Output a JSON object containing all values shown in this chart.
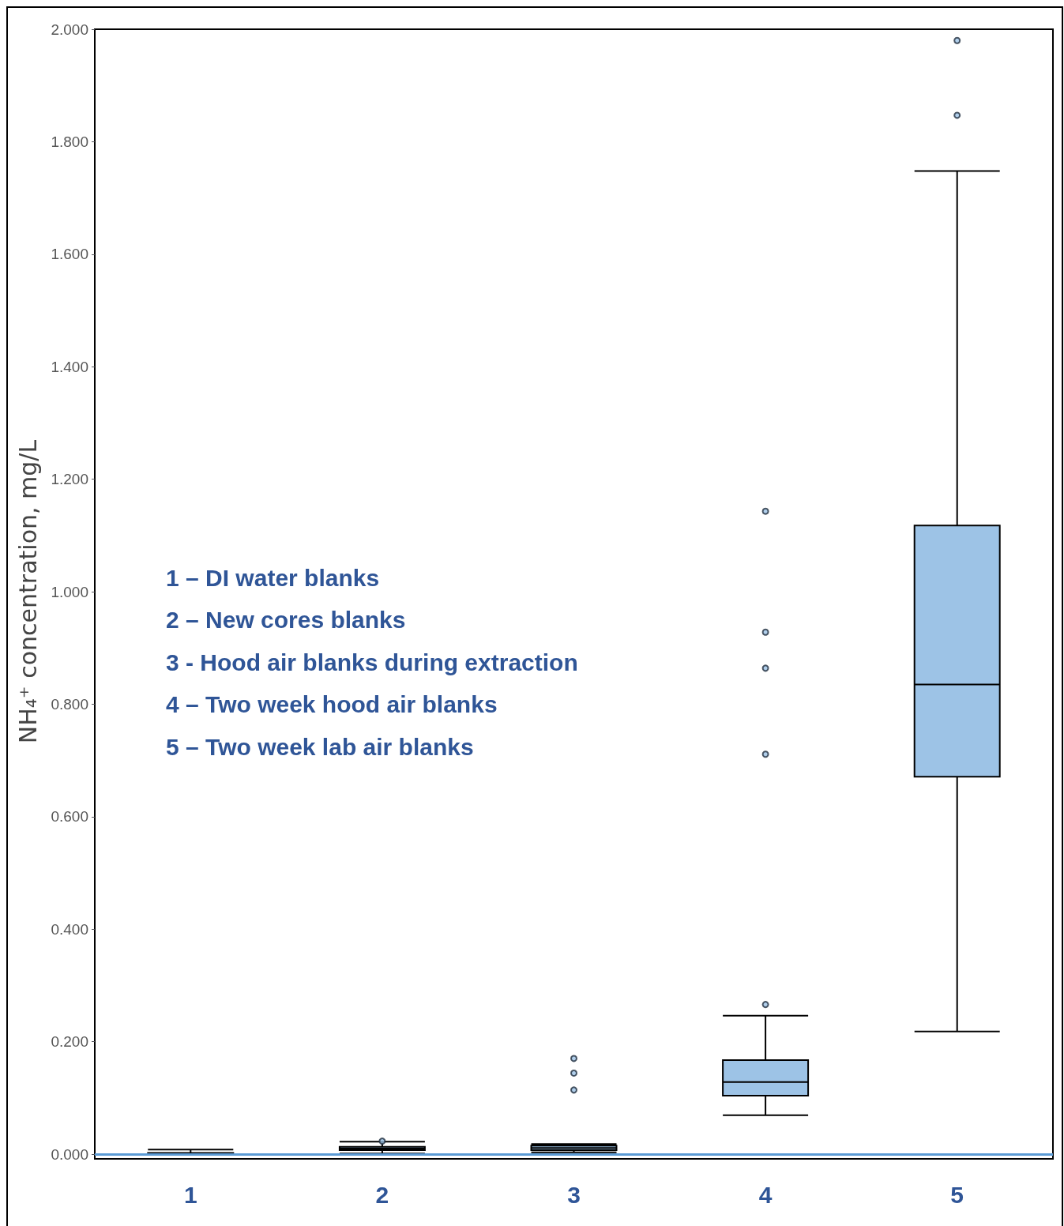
{
  "chart_data": {
    "type": "box",
    "ylabel": "NH₄⁺ concentration, mg/L",
    "categories": [
      "1",
      "2",
      "3",
      "4",
      "5"
    ],
    "series": [
      {
        "color": "#9dc3e6",
        "boxes": [
          {
            "low": 0,
            "q1": 0,
            "median": 0.001,
            "q3": 0.002,
            "high": 0.008
          },
          {
            "low": 0.001,
            "q1": 0.007,
            "median": 0.01,
            "q3": 0.013,
            "high": 0.022,
            "outliers": [
              0.023
            ]
          },
          {
            "low": 0.003,
            "q1": 0.007,
            "median": 0.011,
            "q3": 0.015,
            "high": 0.018,
            "outliers": [
              0.114,
              0.144,
              0.17
            ]
          },
          {
            "low": 0.069,
            "q1": 0.104,
            "median": 0.128,
            "q3": 0.167,
            "high": 0.246,
            "outliers": [
              0.266,
              0.711,
              0.864,
              0.928,
              1.143
            ]
          },
          {
            "low": 0.218,
            "q1": 0.671,
            "median": 0.835,
            "q3": 1.1175,
            "high": 1.748,
            "outliers": [
              1.847,
              1.98
            ]
          }
        ]
      }
    ],
    "ylim": [
      0,
      2
    ],
    "yticks": [
      {
        "value": 0,
        "label": "0.000"
      },
      {
        "value": 0.2,
        "label": "0.200"
      },
      {
        "value": 0.4,
        "label": "0.400"
      },
      {
        "value": 0.6,
        "label": "0.600"
      },
      {
        "value": 0.8,
        "label": "0.800"
      },
      {
        "value": 1,
        "label": "1.000"
      },
      {
        "value": 1.2,
        "label": "1.200"
      },
      {
        "value": 1.4,
        "label": "1.400"
      },
      {
        "value": 1.6,
        "label": "1.600"
      },
      {
        "value": 1.8,
        "label": "1.800"
      },
      {
        "value": 2,
        "label": "2.000"
      }
    ],
    "ref_lines": [
      {
        "axis": "y",
        "value": 0,
        "color": "#5b9bd5"
      }
    ],
    "annotations": [
      "1 – DI water blanks",
      "2 – New cores blanks",
      "3 - Hood air blanks during extraction",
      "4 – Two week hood air blanks",
      "5 – Two week lab air blanks"
    ],
    "grid": false
  }
}
